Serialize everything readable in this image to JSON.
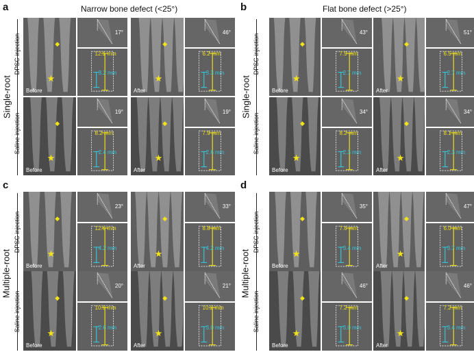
{
  "panel_letters": {
    "a": "a",
    "b": "b",
    "c": "c",
    "d": "d"
  },
  "column_headers": {
    "narrow": "Narrow bone defect (<25°)",
    "flat": "Flat bone defect (>25°)"
  },
  "row_labels": {
    "single": "Single-root",
    "multiple": "Multiple-root"
  },
  "sub_labels": {
    "dpsc": "DPSC injection",
    "saline": "Saline injection"
  },
  "time_labels": {
    "before": "Before",
    "after": "After"
  },
  "measurements": {
    "a_dpsc": {
      "before_angle": "17°",
      "before_mm": "12.1 mm",
      "before_mm2": "3.2 mm",
      "after_angle": "46°",
      "after_mm": "6.2 mm",
      "after_mm2": "3.3 mm"
    },
    "a_saline": {
      "before_angle": "19°",
      "before_mm": "8.2 mm",
      "before_mm2": "2.4 mm",
      "after_angle": "19°",
      "after_mm": "7.9 mm",
      "after_mm2": "2.6 mm"
    },
    "b_dpsc": {
      "before_angle": "43°",
      "before_mm": "7.9 mm",
      "before_mm2": "2.7 mm",
      "after_angle": "51°",
      "after_mm": "6.5 mm",
      "after_mm2": "2.7 mm"
    },
    "b_saline": {
      "before_angle": "34°",
      "before_mm": "8.2 mm",
      "before_mm2": "2.3 mm",
      "after_angle": "34°",
      "after_mm": "8.1 mm",
      "after_mm2": "2.3 mm"
    },
    "c_dpsc": {
      "before_angle": "23°",
      "before_mm": "12.6 mm",
      "before_mm2": "4.2 mm",
      "after_angle": "33°",
      "after_mm": "8.8 mm",
      "after_mm2": "4.2 mm"
    },
    "c_saline": {
      "before_angle": "20°",
      "before_mm": "10.9 mm",
      "before_mm2": "2.6 mm",
      "after_angle": "21°",
      "after_mm": "10.2 mm",
      "after_mm2": "3.0 mm"
    },
    "d_dpsc": {
      "before_angle": "35°",
      "before_mm": "7.6 mm",
      "before_mm2": "3.4 mm",
      "after_angle": "47°",
      "after_mm": "6.0 mm",
      "after_mm2": "3.7 mm"
    },
    "d_saline": {
      "before_angle": "46°",
      "before_mm": "7.2 mm",
      "before_mm2": "3.0 mm",
      "after_angle": "46°",
      "after_mm": "7.2 mm",
      "after_mm2": "3.4 mm"
    }
  },
  "colors": {
    "marker": "#f2e21a",
    "measure_primary": "#f2e21a",
    "measure_secondary": "#34c6d8",
    "annotation_text": "#ffffff"
  }
}
